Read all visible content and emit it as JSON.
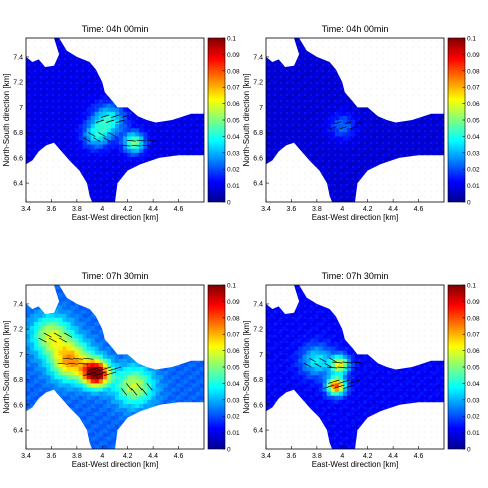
{
  "colormap": [
    "#00008f",
    "#0000ff",
    "#0080ff",
    "#00ffff",
    "#80ff80",
    "#ffff00",
    "#ff8000",
    "#ff0000",
    "#800000"
  ],
  "chart_data": [
    {
      "type": "heatmap",
      "title": "Time: 04h 00min",
      "xlabel": "East-West direction [km]",
      "ylabel": "North-South direction [km]",
      "xlim": [
        3.4,
        4.8
      ],
      "ylim": [
        6.25,
        7.55
      ],
      "xticks": [
        "3.4",
        "3.6",
        "3.8",
        "4",
        "4.2",
        "4.4",
        "4.6"
      ],
      "yticks": [
        "6.4",
        "6.6",
        "6.8",
        "7",
        "7.2",
        "7.4"
      ],
      "colorbar": {
        "range": [
          0,
          0.1
        ],
        "ticks": [
          "0",
          "0.01",
          "0.02",
          "0.03",
          "0.04",
          "0.05",
          "0.06",
          "0.07",
          "0.08",
          "0.09",
          "0.1"
        ]
      },
      "hotspots": [
        {
          "x": 4.05,
          "y": 6.9,
          "value": 0.03,
          "spread": 0.12
        },
        {
          "x": 4.25,
          "y": 6.72,
          "value": 0.04,
          "spread": 0.08
        },
        {
          "x": 3.95,
          "y": 6.78,
          "value": 0.025,
          "spread": 0.1
        }
      ],
      "background_value": 0.008
    },
    {
      "type": "heatmap",
      "title": "Time: 04h 00min",
      "xlabel": "East-West direction [km]",
      "ylabel": "North-South direction [km]",
      "xlim": [
        3.4,
        4.8
      ],
      "ylim": [
        6.25,
        7.55
      ],
      "xticks": [
        "3.4",
        "3.6",
        "3.8",
        "4",
        "4.2",
        "4.4",
        "4.6"
      ],
      "yticks": [
        "6.4",
        "6.6",
        "6.8",
        "7",
        "7.2",
        "7.4"
      ],
      "colorbar": {
        "range": [
          0,
          0.1
        ],
        "ticks": [
          "0",
          "0.01",
          "0.02",
          "0.03",
          "0.04",
          "0.05",
          "0.06",
          "0.07",
          "0.08",
          "0.09",
          "0.1"
        ]
      },
      "hotspots": [
        {
          "x": 4.0,
          "y": 6.85,
          "value": 0.015,
          "spread": 0.1
        }
      ],
      "background_value": 0.006
    },
    {
      "type": "heatmap",
      "title": "Time: 07h 30min",
      "xlabel": "East-West direction [km]",
      "ylabel": "North-South direction [km]",
      "xlim": [
        3.4,
        4.8
      ],
      "ylim": [
        6.25,
        7.55
      ],
      "xticks": [
        "3.4",
        "3.6",
        "3.8",
        "4",
        "4.2",
        "4.4",
        "4.6"
      ],
      "yticks": [
        "6.4",
        "6.6",
        "6.8",
        "7",
        "7.2",
        "7.4"
      ],
      "colorbar": {
        "range": [
          0,
          0.1
        ],
        "ticks": [
          "0",
          "0.01",
          "0.02",
          "0.03",
          "0.04",
          "0.05",
          "0.06",
          "0.07",
          "0.08",
          "0.09",
          "0.1"
        ]
      },
      "hotspots": [
        {
          "x": 3.95,
          "y": 6.85,
          "value": 0.09,
          "spread": 0.1
        },
        {
          "x": 3.75,
          "y": 6.95,
          "value": 0.05,
          "spread": 0.15
        },
        {
          "x": 3.6,
          "y": 7.15,
          "value": 0.035,
          "spread": 0.15
        },
        {
          "x": 4.25,
          "y": 6.75,
          "value": 0.035,
          "spread": 0.15
        }
      ],
      "background_value": 0.02
    },
    {
      "type": "heatmap",
      "title": "Time: 07h 30min",
      "xlabel": "East-West direction [km]",
      "ylabel": "North-South direction [km]",
      "xlim": [
        3.4,
        4.8
      ],
      "ylim": [
        6.25,
        7.55
      ],
      "xticks": [
        "3.4",
        "3.6",
        "3.8",
        "4",
        "4.2",
        "4.4",
        "4.6"
      ],
      "yticks": [
        "6.4",
        "6.6",
        "6.8",
        "7",
        "7.2",
        "7.4"
      ],
      "colorbar": {
        "range": [
          0,
          0.1
        ],
        "ticks": [
          "0",
          "0.01",
          "0.02",
          "0.03",
          "0.04",
          "0.05",
          "0.06",
          "0.07",
          "0.08",
          "0.09",
          "0.1"
        ]
      },
      "hotspots": [
        {
          "x": 3.95,
          "y": 6.75,
          "value": 0.07,
          "spread": 0.07
        },
        {
          "x": 3.98,
          "y": 6.92,
          "value": 0.05,
          "spread": 0.07
        },
        {
          "x": 3.8,
          "y": 6.95,
          "value": 0.025,
          "spread": 0.12
        }
      ],
      "background_value": 0.01
    }
  ]
}
